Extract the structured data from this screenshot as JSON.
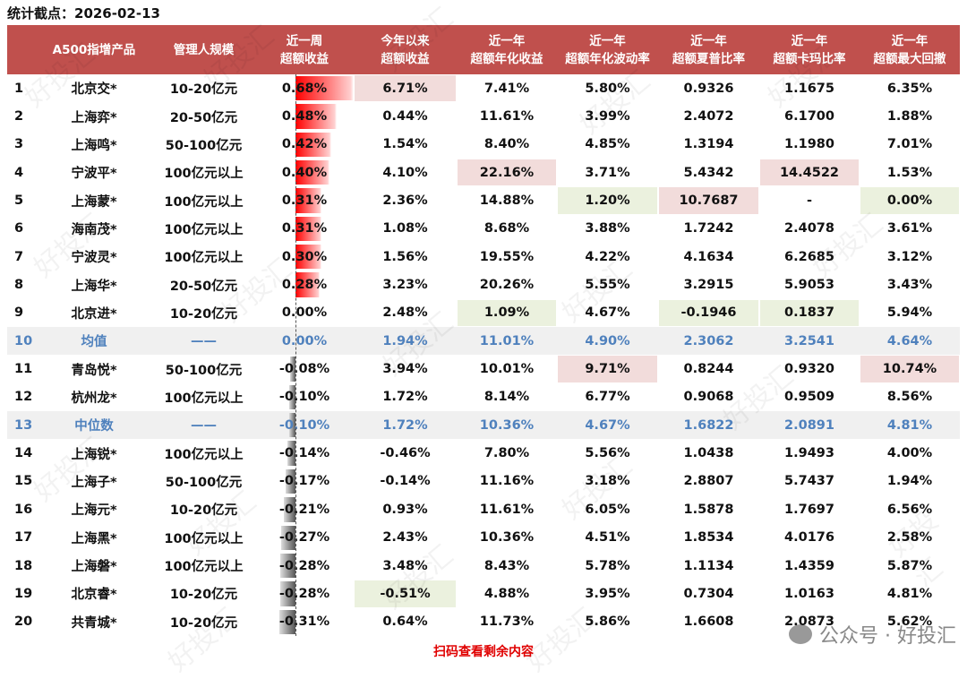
{
  "stat_date": "统计截点：2026-02-13",
  "headers": [
    [
      "",
      ""
    ],
    [
      "A500指增产品",
      ""
    ],
    [
      "管理人规模",
      ""
    ],
    [
      "近一周",
      "超额收益"
    ],
    [
      "今年以来",
      "超额收益"
    ],
    [
      "近一年",
      "超额年化收益"
    ],
    [
      "近一年",
      "超额年化波动率"
    ],
    [
      "近一年",
      "超额夏普比率"
    ],
    [
      "近一年",
      "超额卡玛比率"
    ],
    [
      "近一年",
      "超额最大回撤"
    ]
  ],
  "colors": {
    "header": "#c0504d",
    "pink": "#f2dcdb",
    "green": "#ebf1de",
    "stat_text": "#4f81bd",
    "footer": "#e00000"
  },
  "week_bar_values": [
    0.68,
    0.48,
    0.42,
    0.4,
    0.31,
    0.31,
    0.3,
    0.28,
    0.0,
    0.0,
    -0.08,
    -0.1,
    -0.1,
    -0.14,
    -0.17,
    -0.21,
    -0.27,
    -0.28,
    -0.28,
    -0.31
  ],
  "rows": [
    {
      "cells": [
        "1",
        "北京交*",
        "10-20亿元",
        "0.68%",
        "6.71%",
        "7.41%",
        "5.80%",
        "0.9326",
        "1.1675",
        "6.35%"
      ],
      "hl": {
        "4": "pink"
      }
    },
    {
      "cells": [
        "2",
        "上海弈*",
        "20-50亿元",
        "0.48%",
        "0.44%",
        "11.61%",
        "3.99%",
        "2.4072",
        "6.1700",
        "1.88%"
      ],
      "hl": {}
    },
    {
      "cells": [
        "3",
        "上海鸣*",
        "50-100亿元",
        "0.42%",
        "1.54%",
        "8.40%",
        "4.85%",
        "1.3194",
        "1.1980",
        "7.01%"
      ],
      "hl": {}
    },
    {
      "cells": [
        "4",
        "宁波平*",
        "100亿元以上",
        "0.40%",
        "4.10%",
        "22.16%",
        "3.71%",
        "5.4342",
        "14.4522",
        "1.53%"
      ],
      "hl": {
        "5": "pink",
        "8": "pink"
      }
    },
    {
      "cells": [
        "5",
        "上海蒙*",
        "100亿元以上",
        "0.31%",
        "2.36%",
        "14.88%",
        "1.20%",
        "10.7687",
        "-",
        "0.00%"
      ],
      "hl": {
        "6": "green",
        "7": "pink",
        "9": "green"
      }
    },
    {
      "cells": [
        "6",
        "海南茂*",
        "100亿元以上",
        "0.31%",
        "1.08%",
        "8.68%",
        "3.88%",
        "1.7242",
        "2.4078",
        "3.61%"
      ],
      "hl": {}
    },
    {
      "cells": [
        "7",
        "宁波灵*",
        "100亿元以上",
        "0.30%",
        "1.56%",
        "19.55%",
        "4.22%",
        "4.1634",
        "6.2685",
        "3.12%"
      ],
      "hl": {}
    },
    {
      "cells": [
        "8",
        "上海华*",
        "20-50亿元",
        "0.28%",
        "3.23%",
        "20.26%",
        "5.55%",
        "3.2915",
        "5.9053",
        "3.43%"
      ],
      "hl": {}
    },
    {
      "cells": [
        "9",
        "北京进*",
        "10-20亿元",
        "0.00%",
        "2.48%",
        "1.09%",
        "4.67%",
        "-0.1946",
        "0.1837",
        "5.94%"
      ],
      "hl": {
        "5": "green",
        "7": "green",
        "8": "green"
      }
    },
    {
      "cells": [
        "10",
        "均值",
        "——",
        "0.00%",
        "1.94%",
        "11.01%",
        "4.90%",
        "2.3062",
        "3.2541",
        "4.64%"
      ],
      "hl": {},
      "stat": true
    },
    {
      "cells": [
        "11",
        "青岛悦*",
        "50-100亿元",
        "-0.08%",
        "3.94%",
        "10.01%",
        "9.71%",
        "0.8244",
        "0.9320",
        "10.74%"
      ],
      "hl": {
        "6": "pink",
        "9": "pink"
      }
    },
    {
      "cells": [
        "12",
        "杭州龙*",
        "100亿元以上",
        "-0.10%",
        "1.72%",
        "8.14%",
        "6.77%",
        "0.9068",
        "0.9509",
        "8.56%"
      ],
      "hl": {}
    },
    {
      "cells": [
        "13",
        "中位数",
        "——",
        "-0.10%",
        "1.72%",
        "10.36%",
        "4.67%",
        "1.6822",
        "2.0891",
        "4.81%"
      ],
      "hl": {},
      "stat": true
    },
    {
      "cells": [
        "14",
        "上海锐*",
        "100亿元以上",
        "-0.14%",
        "-0.46%",
        "7.80%",
        "5.56%",
        "1.0438",
        "1.9493",
        "4.00%"
      ],
      "hl": {}
    },
    {
      "cells": [
        "15",
        "上海子*",
        "50-100亿元",
        "-0.17%",
        "-0.14%",
        "11.16%",
        "3.18%",
        "2.8807",
        "5.7437",
        "1.94%"
      ],
      "hl": {}
    },
    {
      "cells": [
        "16",
        "上海元*",
        "10-20亿元",
        "-0.21%",
        "0.93%",
        "11.61%",
        "6.05%",
        "1.5878",
        "1.7697",
        "6.56%"
      ],
      "hl": {}
    },
    {
      "cells": [
        "17",
        "上海黑*",
        "100亿元以上",
        "-0.27%",
        "2.43%",
        "10.36%",
        "4.51%",
        "1.8534",
        "4.0176",
        "2.58%"
      ],
      "hl": {}
    },
    {
      "cells": [
        "18",
        "上海磐*",
        "100亿元以上",
        "-0.28%",
        "3.48%",
        "8.43%",
        "5.78%",
        "1.1134",
        "1.4359",
        "5.87%"
      ],
      "hl": {}
    },
    {
      "cells": [
        "19",
        "北京睿*",
        "10-20亿元",
        "-0.28%",
        "-0.51%",
        "4.88%",
        "3.95%",
        "0.7304",
        "1.0163",
        "4.81%"
      ],
      "hl": {
        "4": "green"
      }
    },
    {
      "cells": [
        "20",
        "共青城*",
        "10-20亿元",
        "-0.31%",
        "0.64%",
        "11.73%",
        "5.86%",
        "1.6608",
        "2.0873",
        "5.62%"
      ],
      "hl": {}
    }
  ],
  "footer_note": "扫码查看剩余内容",
  "brand": "公众号 · 好投汇",
  "watermark": "好投汇"
}
